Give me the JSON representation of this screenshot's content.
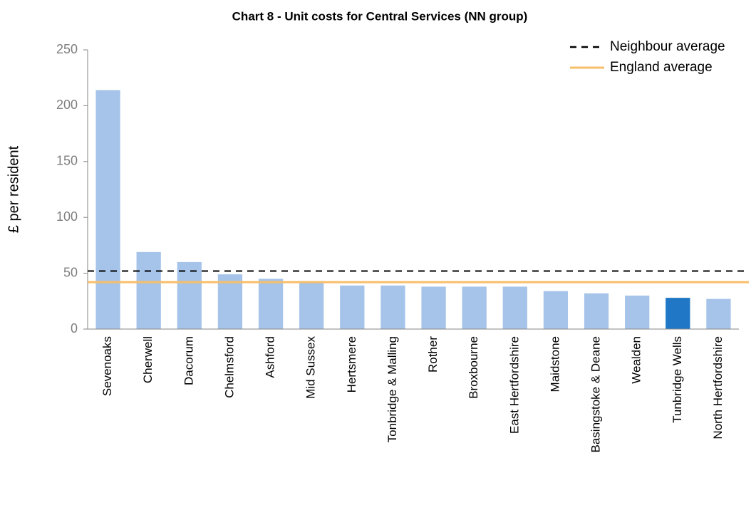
{
  "chart_data": {
    "type": "bar",
    "title": "Chart 8 - Unit costs for Central Services (NN group)",
    "y_label": "£ per resident",
    "categories": [
      "Sevenoaks",
      "Cherwell",
      "Dacorum",
      "Chelmsford",
      "Ashford",
      "Mid Sussex",
      "Hertsmere",
      "Tonbridge & Malling",
      "Rother",
      "Broxbourne",
      "East Hertfordshire",
      "Maidstone",
      "Basingstoke & Deane",
      "Wealden",
      "Tunbridge Wells",
      "North Hertfordshire"
    ],
    "values": [
      214,
      69,
      60,
      49,
      45,
      43,
      39,
      39,
      38,
      38,
      38,
      34,
      32,
      30,
      28,
      27
    ],
    "colors": [
      "#a6c4e9",
      "#a6c4e9",
      "#a6c4e9",
      "#a6c4e9",
      "#a6c4e9",
      "#a6c4e9",
      "#a6c4e9",
      "#a6c4e9",
      "#a6c4e9",
      "#a6c4e9",
      "#a6c4e9",
      "#a6c4e9",
      "#a6c4e9",
      "#a6c4e9",
      "#1f77c6",
      "#a6c4e9"
    ],
    "reference_lines": [
      {
        "name": "Neighbour average",
        "value": 52,
        "color": "#000000",
        "dashed": true
      },
      {
        "name": "England average",
        "value": 42,
        "color": "#f7be6a",
        "dashed": false
      }
    ],
    "ylim": [
      0,
      250
    ],
    "yticks": [
      0,
      50,
      100,
      150,
      200,
      250
    ],
    "legend": "top-right"
  }
}
